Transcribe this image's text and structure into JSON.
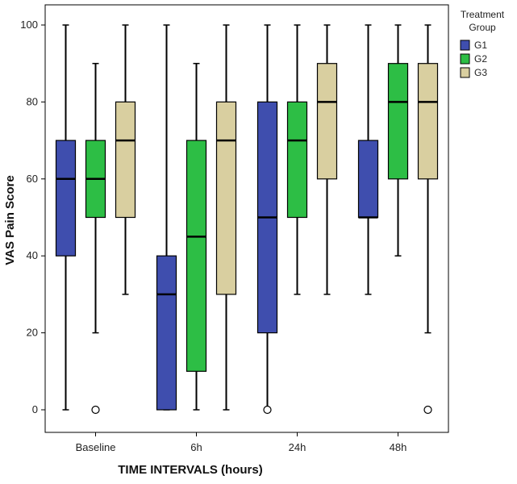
{
  "chart_data": {
    "type": "boxplot",
    "title": "",
    "xlabel": "TIME INTERVALS (hours)",
    "ylabel": "VAS Pain Score",
    "ylim": [
      0,
      100
    ],
    "yticks": [
      0,
      20,
      40,
      60,
      80,
      100
    ],
    "grid": false,
    "legend_placement": "right",
    "legend_title": [
      "Treatment",
      "Group"
    ],
    "categories": [
      "Baseline",
      "6h",
      "24h",
      "48h"
    ],
    "series": [
      {
        "name": "G1",
        "color": "#3F4EAE",
        "boxes": [
          {
            "min": 0,
            "q1": 40,
            "median": 60,
            "q3": 70,
            "max": 100,
            "outliers": []
          },
          {
            "min": 0,
            "q1": 0,
            "median": 30,
            "q3": 40,
            "max": 100,
            "outliers": []
          },
          {
            "min": 0,
            "q1": 20,
            "median": 50,
            "q3": 80,
            "max": 100,
            "outliers": [
              0
            ]
          },
          {
            "min": 30,
            "q1": 50,
            "median": 50,
            "q3": 70,
            "max": 100,
            "outliers": []
          }
        ]
      },
      {
        "name": "G2",
        "color": "#2DBE45",
        "boxes": [
          {
            "min": 20,
            "q1": 50,
            "median": 60,
            "q3": 70,
            "max": 90,
            "outliers": [
              0
            ]
          },
          {
            "min": 0,
            "q1": 10,
            "median": 45,
            "q3": 70,
            "max": 90,
            "outliers": []
          },
          {
            "min": 30,
            "q1": 50,
            "median": 70,
            "q3": 80,
            "max": 100,
            "outliers": []
          },
          {
            "min": 40,
            "q1": 60,
            "median": 80,
            "q3": 90,
            "max": 100,
            "outliers": []
          }
        ]
      },
      {
        "name": "G3",
        "color": "#D9CFA0",
        "boxes": [
          {
            "min": 30,
            "q1": 50,
            "median": 70,
            "q3": 80,
            "max": 100,
            "outliers": []
          },
          {
            "min": 0,
            "q1": 30,
            "median": 70,
            "q3": 80,
            "max": 100,
            "outliers": []
          },
          {
            "min": 30,
            "q1": 60,
            "median": 80,
            "q3": 90,
            "max": 100,
            "outliers": []
          },
          {
            "min": 20,
            "q1": 60,
            "median": 80,
            "q3": 90,
            "max": 100,
            "outliers": [
              0
            ]
          }
        ]
      }
    ]
  }
}
